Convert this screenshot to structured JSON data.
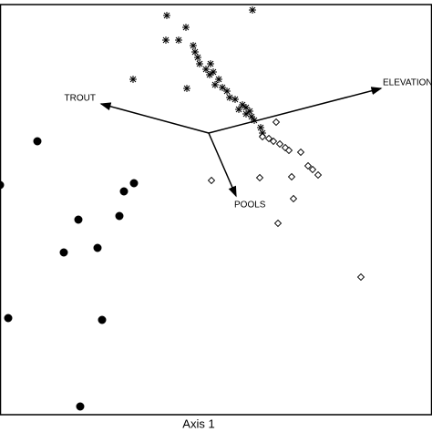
{
  "chart_data": {
    "type": "biplot",
    "x_label": "Axis 1",
    "xlim": [
      -2.29,
      2.45
    ],
    "ylim": [
      -3.09,
      1.41
    ],
    "series": [
      {
        "marker": "star",
        "color": "#000000",
        "x": [
          -0.46,
          0.48,
          -0.25,
          -0.33,
          -0.47,
          -0.17,
          -0.15,
          -0.12,
          -0.1,
          0.02,
          -0.03,
          0.05,
          -0.83,
          0.11,
          0.07,
          0.15,
          -0.24,
          0.2,
          0.23,
          0.29,
          0.37,
          0.41,
          0.41,
          0.47,
          0.5,
          0.57,
          0.59,
          0.45,
          0.33,
          0.01
        ],
        "y": [
          1.29,
          1.35,
          1.16,
          1.02,
          1.02,
          0.96,
          0.89,
          0.83,
          0.76,
          0.76,
          0.7,
          0.67,
          0.59,
          0.59,
          0.53,
          0.5,
          0.49,
          0.46,
          0.39,
          0.37,
          0.31,
          0.28,
          0.21,
          0.18,
          0.14,
          0.06,
          0.0,
          0.24,
          0.26,
          0.64
        ]
      },
      {
        "marker": "diamond",
        "color": "#000000",
        "x": [
          0.74,
          0.59,
          0.66,
          0.71,
          0.78,
          0.84,
          0.88,
          1.01,
          1.09,
          1.14,
          1.2,
          0.56,
          0.03,
          0.91,
          0.93,
          0.76,
          1.67
        ],
        "y": [
          0.12,
          -0.04,
          -0.06,
          -0.09,
          -0.12,
          -0.16,
          -0.19,
          -0.21,
          -0.36,
          -0.4,
          -0.46,
          -0.49,
          -0.52,
          -0.48,
          -0.72,
          -0.99,
          -1.58
        ]
      },
      {
        "marker": "circle",
        "color": "#000000",
        "x": [
          -1.88,
          -0.82,
          -0.93,
          -1.43,
          -0.98,
          -1.22,
          -1.59,
          -2.2,
          -1.17,
          -1.41,
          -2.29
        ],
        "y": [
          -0.09,
          -0.55,
          -0.64,
          -0.95,
          -0.91,
          -1.26,
          -1.31,
          -2.03,
          -2.05,
          -3.0,
          -0.57
        ]
      }
    ],
    "vectors": [
      {
        "name": "TROUT",
        "x": -1.18,
        "y": 0.32
      },
      {
        "name": "ELEVATION",
        "x": 1.89,
        "y": 0.49
      },
      {
        "name": "POOLS",
        "x": 0.3,
        "y": -0.69
      }
    ]
  }
}
